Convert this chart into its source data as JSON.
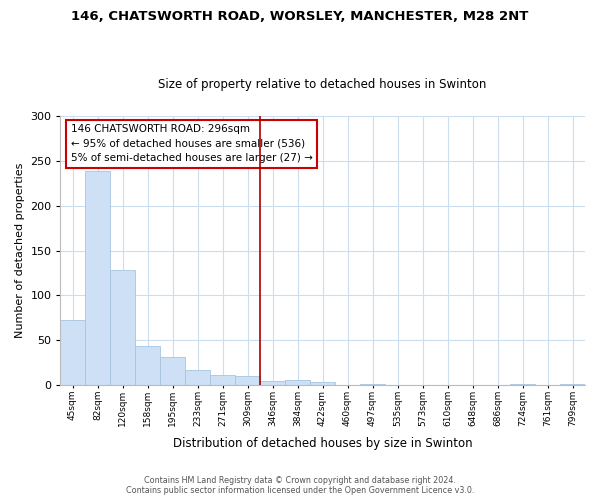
{
  "title": "146, CHATSWORTH ROAD, WORSLEY, MANCHESTER, M28 2NT",
  "subtitle": "Size of property relative to detached houses in Swinton",
  "xlabel": "Distribution of detached houses by size in Swinton",
  "ylabel": "Number of detached properties",
  "bar_labels": [
    "45sqm",
    "82sqm",
    "120sqm",
    "158sqm",
    "195sqm",
    "233sqm",
    "271sqm",
    "309sqm",
    "346sqm",
    "384sqm",
    "422sqm",
    "460sqm",
    "497sqm",
    "535sqm",
    "573sqm",
    "610sqm",
    "648sqm",
    "686sqm",
    "724sqm",
    "761sqm",
    "799sqm"
  ],
  "bar_values": [
    73,
    238,
    128,
    44,
    31,
    17,
    12,
    10,
    5,
    6,
    4,
    0,
    2,
    0,
    0,
    0,
    0,
    0,
    2,
    0,
    1
  ],
  "bar_color": "#cde0f5",
  "bar_edge_color": "#a8c4e0",
  "vline_x_idx": 7,
  "vline_color": "#aa0000",
  "annotation_text": "146 CHATSWORTH ROAD: 296sqm\n← 95% of detached houses are smaller (536)\n5% of semi-detached houses are larger (27) →",
  "annotation_box_color": "#ffffff",
  "annotation_box_edge": "#cc0000",
  "ylim": [
    0,
    300
  ],
  "yticks": [
    0,
    50,
    100,
    150,
    200,
    250,
    300
  ],
  "footer_line1": "Contains HM Land Registry data © Crown copyright and database right 2024.",
  "footer_line2": "Contains public sector information licensed under the Open Government Licence v3.0.",
  "bg_color": "#ffffff",
  "plot_bg_color": "#ffffff",
  "grid_color": "#ccddee"
}
